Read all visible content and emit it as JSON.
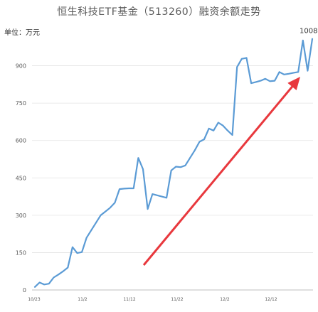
{
  "chart_data": {
    "type": "line",
    "title": "恒生科技ETF基金（513260）融资余额走势",
    "unit_label": "单位：万元",
    "x_tick_labels": [
      "10/23",
      "11/2",
      "11/12",
      "11/22",
      "12/2",
      "12/12"
    ],
    "y_ticks": [
      0,
      150,
      300,
      450,
      600,
      750,
      900
    ],
    "ylim": [
      0,
      1050
    ],
    "grid": "horizontal",
    "series": [
      {
        "color": "#5b9bd5",
        "values": [
          12,
          30,
          22,
          25,
          50,
          62,
          75,
          90,
          172,
          148,
          152,
          210,
          240,
          270,
          300,
          315,
          330,
          350,
          405,
          407,
          408,
          408,
          530,
          485,
          325,
          385,
          380,
          375,
          370,
          480,
          495,
          493,
          500,
          530,
          560,
          595,
          605,
          648,
          640,
          672,
          660,
          640,
          622,
          895,
          928,
          932,
          830,
          835,
          840,
          848,
          838,
          840,
          875,
          865,
          868,
          872,
          875,
          1002,
          880,
          1008
        ]
      }
    ],
    "last_value_label": "1008",
    "trend_arrow_color": "#e8383d"
  }
}
